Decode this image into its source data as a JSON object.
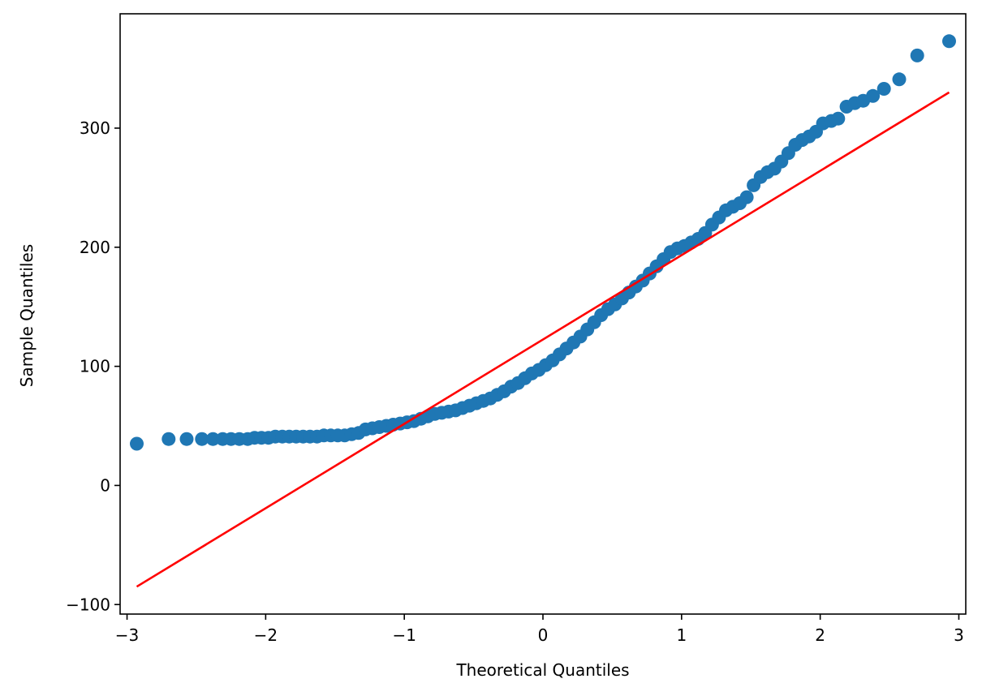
{
  "chart_data": {
    "type": "scatter",
    "title": "",
    "xlabel": "Theoretical Quantiles",
    "ylabel": "Sample Quantiles",
    "xlim": [
      -3.05,
      3.05
    ],
    "ylim": [
      -108,
      396
    ],
    "xticks": [
      -3,
      -2,
      -1,
      0,
      1,
      2,
      3
    ],
    "xtick_labels": [
      "−3",
      "−2",
      "−1",
      "0",
      "1",
      "2",
      "3"
    ],
    "yticks": [
      -100,
      0,
      100,
      200,
      300
    ],
    "ytick_labels": [
      "−100",
      "0",
      "100",
      "200",
      "300"
    ],
    "grid": false,
    "legend": "none",
    "series": [
      {
        "kind": "points",
        "color": "#1f77b4",
        "points": [
          [
            -2.93,
            35
          ],
          [
            -2.7,
            39
          ],
          [
            -2.57,
            39
          ],
          [
            -2.46,
            39
          ],
          [
            -2.38,
            39
          ],
          [
            -2.31,
            39
          ],
          [
            -2.25,
            39
          ],
          [
            -2.19,
            39
          ],
          [
            -2.13,
            39
          ],
          [
            -2.08,
            40
          ],
          [
            -2.03,
            40
          ],
          [
            -1.98,
            40
          ],
          [
            -1.93,
            41
          ],
          [
            -1.88,
            41
          ],
          [
            -1.83,
            41
          ],
          [
            -1.78,
            41
          ],
          [
            -1.73,
            41
          ],
          [
            -1.68,
            41
          ],
          [
            -1.63,
            41
          ],
          [
            -1.58,
            42
          ],
          [
            -1.53,
            42
          ],
          [
            -1.48,
            42
          ],
          [
            -1.43,
            42
          ],
          [
            -1.38,
            43
          ],
          [
            -1.33,
            44
          ],
          [
            -1.28,
            47
          ],
          [
            -1.23,
            48
          ],
          [
            -1.18,
            49
          ],
          [
            -1.13,
            50
          ],
          [
            -1.08,
            51
          ],
          [
            -1.03,
            52
          ],
          [
            -0.98,
            53
          ],
          [
            -0.93,
            54
          ],
          [
            -0.88,
            56
          ],
          [
            -0.83,
            58
          ],
          [
            -0.78,
            60
          ],
          [
            -0.73,
            61
          ],
          [
            -0.68,
            62
          ],
          [
            -0.63,
            63
          ],
          [
            -0.58,
            65
          ],
          [
            -0.53,
            67
          ],
          [
            -0.48,
            69
          ],
          [
            -0.43,
            71
          ],
          [
            -0.38,
            73
          ],
          [
            -0.33,
            76
          ],
          [
            -0.28,
            79
          ],
          [
            -0.23,
            83
          ],
          [
            -0.18,
            86
          ],
          [
            -0.13,
            90
          ],
          [
            -0.08,
            94
          ],
          [
            -0.03,
            97
          ],
          [
            0.02,
            101
          ],
          [
            0.07,
            105
          ],
          [
            0.12,
            110
          ],
          [
            0.17,
            115
          ],
          [
            0.22,
            120
          ],
          [
            0.27,
            125
          ],
          [
            0.32,
            131
          ],
          [
            0.37,
            137
          ],
          [
            0.42,
            143
          ],
          [
            0.47,
            148
          ],
          [
            0.52,
            152
          ],
          [
            0.57,
            157
          ],
          [
            0.62,
            162
          ],
          [
            0.67,
            167
          ],
          [
            0.72,
            172
          ],
          [
            0.77,
            178
          ],
          [
            0.82,
            184
          ],
          [
            0.87,
            190
          ],
          [
            0.92,
            196
          ],
          [
            0.97,
            199
          ],
          [
            1.02,
            201
          ],
          [
            1.07,
            204
          ],
          [
            1.12,
            207
          ],
          [
            1.17,
            212
          ],
          [
            1.22,
            219
          ],
          [
            1.27,
            225
          ],
          [
            1.32,
            231
          ],
          [
            1.37,
            234
          ],
          [
            1.42,
            237
          ],
          [
            1.47,
            242
          ],
          [
            1.52,
            252
          ],
          [
            1.57,
            259
          ],
          [
            1.62,
            263
          ],
          [
            1.67,
            266
          ],
          [
            1.72,
            272
          ],
          [
            1.77,
            279
          ],
          [
            1.82,
            286
          ],
          [
            1.87,
            290
          ],
          [
            1.92,
            293
          ],
          [
            1.97,
            297
          ],
          [
            2.02,
            304
          ],
          [
            2.08,
            306
          ],
          [
            2.13,
            308
          ],
          [
            2.19,
            318
          ],
          [
            2.25,
            321
          ],
          [
            2.31,
            323
          ],
          [
            2.38,
            327
          ],
          [
            2.46,
            333
          ],
          [
            2.57,
            341
          ],
          [
            2.7,
            361
          ],
          [
            2.93,
            373
          ]
        ]
      },
      {
        "kind": "line",
        "color": "#ff0000",
        "points": [
          [
            -2.93,
            -85
          ],
          [
            2.93,
            330
          ]
        ]
      }
    ]
  }
}
